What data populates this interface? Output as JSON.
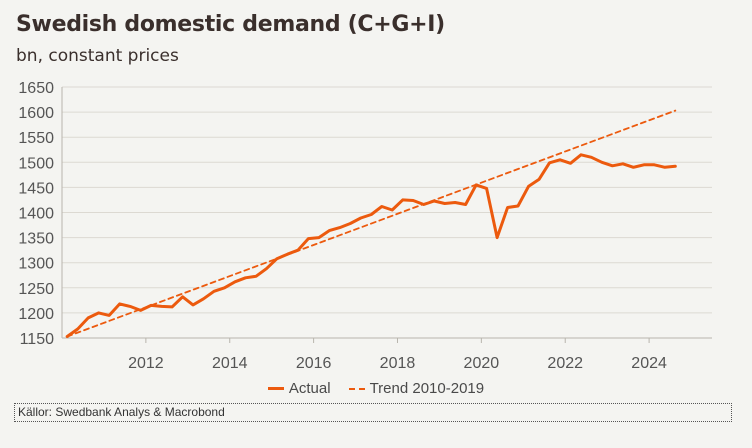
{
  "colors": {
    "actual": "#ec5a0e",
    "trend": "#ec5a0e",
    "grid": "#dcd9d2",
    "axis": "#b8b5ad",
    "tick_text": "#555555"
  },
  "chart_data": {
    "type": "line",
    "title": "Swedish domestic demand (C+G+I)",
    "subtitle": "bn, constant prices",
    "xlabel": "",
    "ylabel": "",
    "xlim": [
      2010.0,
      2025.5
    ],
    "ylim": [
      1150,
      1650
    ],
    "yticks": [
      1150,
      1200,
      1250,
      1300,
      1350,
      1400,
      1450,
      1500,
      1550,
      1600,
      1650
    ],
    "xticks": [
      2012,
      2014,
      2016,
      2018,
      2020,
      2022,
      2024
    ],
    "grid": true,
    "legend_position": "bottom-center",
    "series": [
      {
        "name": "Actual",
        "style": "solid",
        "x": [
          2010.125,
          2010.375,
          2010.625,
          2010.875,
          2011.125,
          2011.375,
          2011.625,
          2011.875,
          2012.125,
          2012.375,
          2012.625,
          2012.875,
          2013.125,
          2013.375,
          2013.625,
          2013.875,
          2014.125,
          2014.375,
          2014.625,
          2014.875,
          2015.125,
          2015.375,
          2015.625,
          2015.875,
          2016.125,
          2016.375,
          2016.625,
          2016.875,
          2017.125,
          2017.375,
          2017.625,
          2017.875,
          2018.125,
          2018.375,
          2018.625,
          2018.875,
          2019.125,
          2019.375,
          2019.625,
          2019.875,
          2020.125,
          2020.375,
          2020.625,
          2020.875,
          2021.125,
          2021.375,
          2021.625,
          2021.875,
          2022.125,
          2022.375,
          2022.625,
          2022.875,
          2023.125,
          2023.375,
          2023.625,
          2023.875,
          2024.125,
          2024.375,
          2024.625
        ],
        "values": [
          1153,
          1168,
          1190,
          1200,
          1195,
          1218,
          1213,
          1205,
          1215,
          1213,
          1212,
          1232,
          1216,
          1228,
          1243,
          1250,
          1262,
          1270,
          1273,
          1288,
          1308,
          1317,
          1325,
          1348,
          1350,
          1364,
          1370,
          1378,
          1389,
          1396,
          1412,
          1405,
          1425,
          1424,
          1416,
          1423,
          1418,
          1420,
          1416,
          1455,
          1448,
          1350,
          1410,
          1413,
          1452,
          1466,
          1499,
          1505,
          1498,
          1515,
          1510,
          1500,
          1493,
          1497,
          1490,
          1495,
          1495,
          1490,
          1492
        ]
      },
      {
        "name": "Trend 2010-2019",
        "style": "dashed",
        "x": [
          2010.125,
          2024.625
        ],
        "values": [
          1153,
          1603
        ]
      }
    ]
  },
  "source": "Källor: Swedbank Analys & Macrobond"
}
